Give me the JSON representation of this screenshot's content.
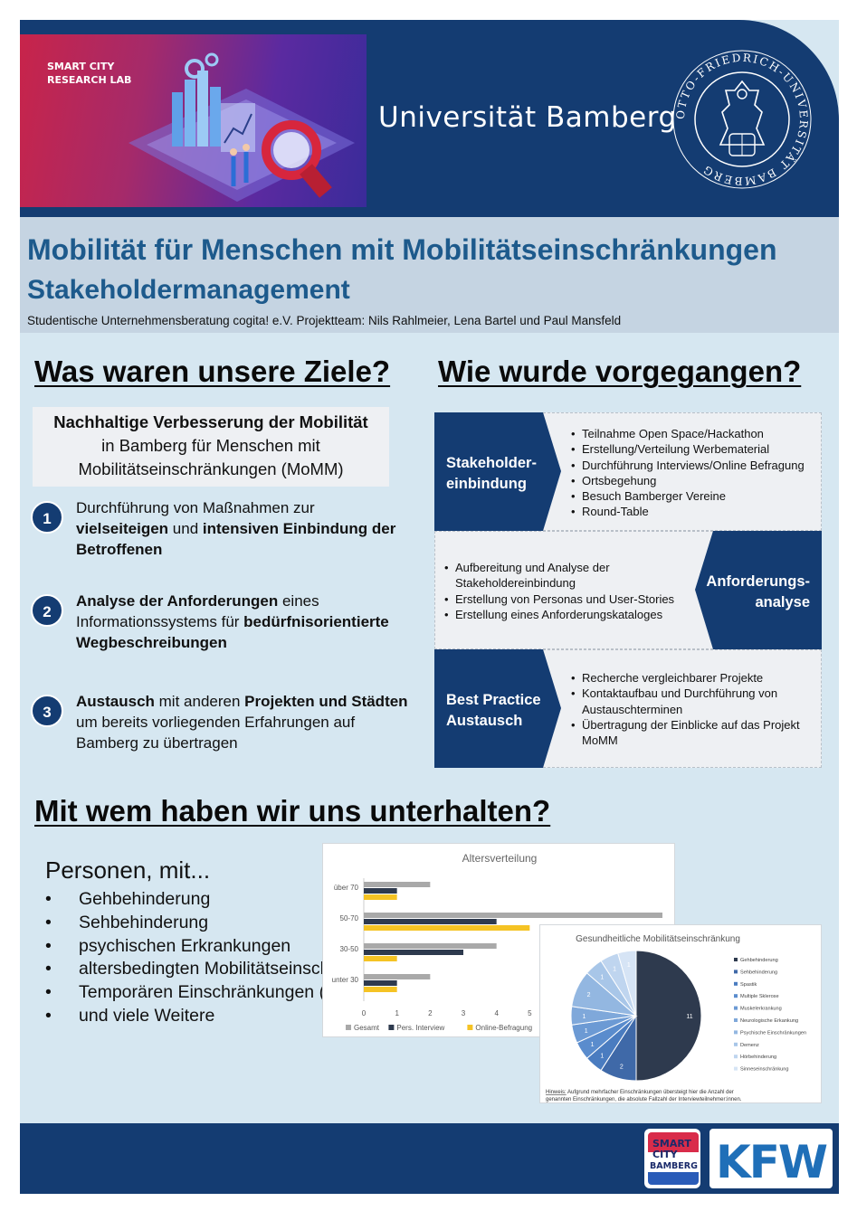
{
  "header": {
    "lab_title": "SMART CITY RESEARCH LAB",
    "university": "Universität Bamberg",
    "seal_text": "OTTO-FRIEDRICH-UNIVERSITÄT BAMBERG"
  },
  "title": {
    "main": "Mobilität für Menschen mit Mobilitätseinschränkungen",
    "sub": "Stakeholdermanagement",
    "team": "Studentische Unternehmensberatung cogita! e.V. Projektteam: Nils Rahlmeier, Lena Bartel und Paul Mansfeld"
  },
  "goals": {
    "heading": "Was waren unsere Ziele?",
    "box_line1": "Nachhaltige Verbesserung der Mobilität",
    "box_line2": "in Bamberg für Menschen mit",
    "box_line3": "Mobilitätseinschränkungen (MoMM)",
    "items": [
      {
        "num": "1",
        "a": "Durchführung von Maßnahmen zur",
        "b1": "vielseiteigen",
        "b2": " und ",
        "b3": "intensiven Einbindung der Betroffenen"
      },
      {
        "num": "2",
        "a": "Analyse der Anforderungen",
        "b1": " eines Informationssystems für ",
        "b2": "bedürfnisorientierte Wegbeschreibungen"
      },
      {
        "num": "3",
        "a": "Austausch",
        "b1": " mit anderen ",
        "b2": "Projekten und Städten",
        "b3": " um bereits vorliegenden Erfahrungen auf Bamberg zu übertragen"
      }
    ]
  },
  "process": {
    "heading": "Wie wurde vorgegangen?",
    "steps": [
      {
        "label1": "Stakeholder-",
        "label2": "einbindung",
        "bullets": [
          "Teilnahme Open Space/Hackathon",
          "Erstellung/Verteilung  Werbematerial",
          "Durchführung Interviews/Online Befragung",
          "Ortsbegehung",
          "Besuch Bamberger Vereine",
          "Round-Table"
        ]
      },
      {
        "label1": "Anforderungs-",
        "label2": "analyse",
        "bullets": [
          "Aufbereitung und Analyse der Stakeholdereinbindung",
          "Erstellung von Personas und User-Stories",
          "Erstellung eines Anforderungskataloges"
        ]
      },
      {
        "label1": "Best Practice",
        "label2": "Austausch",
        "bullets": [
          "Recherche vergleichbarer Projekte",
          "Kontaktaufbau und Durchführung von Austauschterminen",
          "Übertragung der Einblicke auf das Projekt MoMM"
        ]
      }
    ]
  },
  "talks": {
    "heading": "Mit wem haben wir uns unterhalten?",
    "persons_title": "Personen, mit...",
    "persons": [
      "Gehbehinderung",
      "Sehbehinderung",
      "psychischen Erkrankungen",
      "altersbedingten Mobilitätseinschränkungen",
      "Temporären Einschränkungen (z.B. Kinderwagen, Krücken…)",
      "und viele Weitere"
    ]
  },
  "chart_data": [
    {
      "type": "bar",
      "title": "Altersverteilung",
      "categories": [
        "über 70",
        "50-70",
        "30-50",
        "unter 30"
      ],
      "series": [
        {
          "name": "Gesamt",
          "values": [
            2,
            9,
            4,
            2
          ],
          "color": "#a9a9a9"
        },
        {
          "name": "Pers. Interview",
          "values": [
            1,
            4,
            3,
            1
          ],
          "color": "#2e3a4e"
        },
        {
          "name": "Online-Befragung",
          "values": [
            1,
            5,
            1,
            1
          ],
          "color": "#f5c324"
        }
      ],
      "xticks": [
        "0",
        "1",
        "2",
        "3",
        "4",
        "5"
      ],
      "xlim": [
        0,
        9
      ]
    },
    {
      "type": "pie",
      "title": "Gesundheitliche Mobilitätseinschränkung",
      "categories": [
        "Gehbehinderung",
        "Sehbehinderung",
        "Spastik",
        "Multiple Sklerose",
        "Muskelerkrankung",
        "Neurologische Erkankung",
        "Psychische Einschränkungen",
        "Demenz",
        "Hörbehinderung",
        "Sinneseinschränkung"
      ],
      "values": [
        11,
        2,
        1,
        1,
        1,
        1,
        2,
        1,
        1,
        1
      ],
      "colors": [
        "#2e3a4e",
        "#3f69a8",
        "#4a7cc0",
        "#5a8ccd",
        "#6c9ad4",
        "#7fa8da",
        "#93b7e1",
        "#a8c6e8",
        "#bfd5ef",
        "#d6e4f5"
      ],
      "note_label": "Hinweis:",
      "note": "Aufgrund mehrfacher Einschränkungen übersteigt hier die  Anzahl der genannten Einschränkungen, die absolute Fallzahl der Interviewteilnehmer:innen."
    }
  ],
  "footer": {
    "scb_line1": "SMART",
    "scb_line2": "CITY",
    "scb_line3": "BAMBERG",
    "kfw": "KFW"
  }
}
